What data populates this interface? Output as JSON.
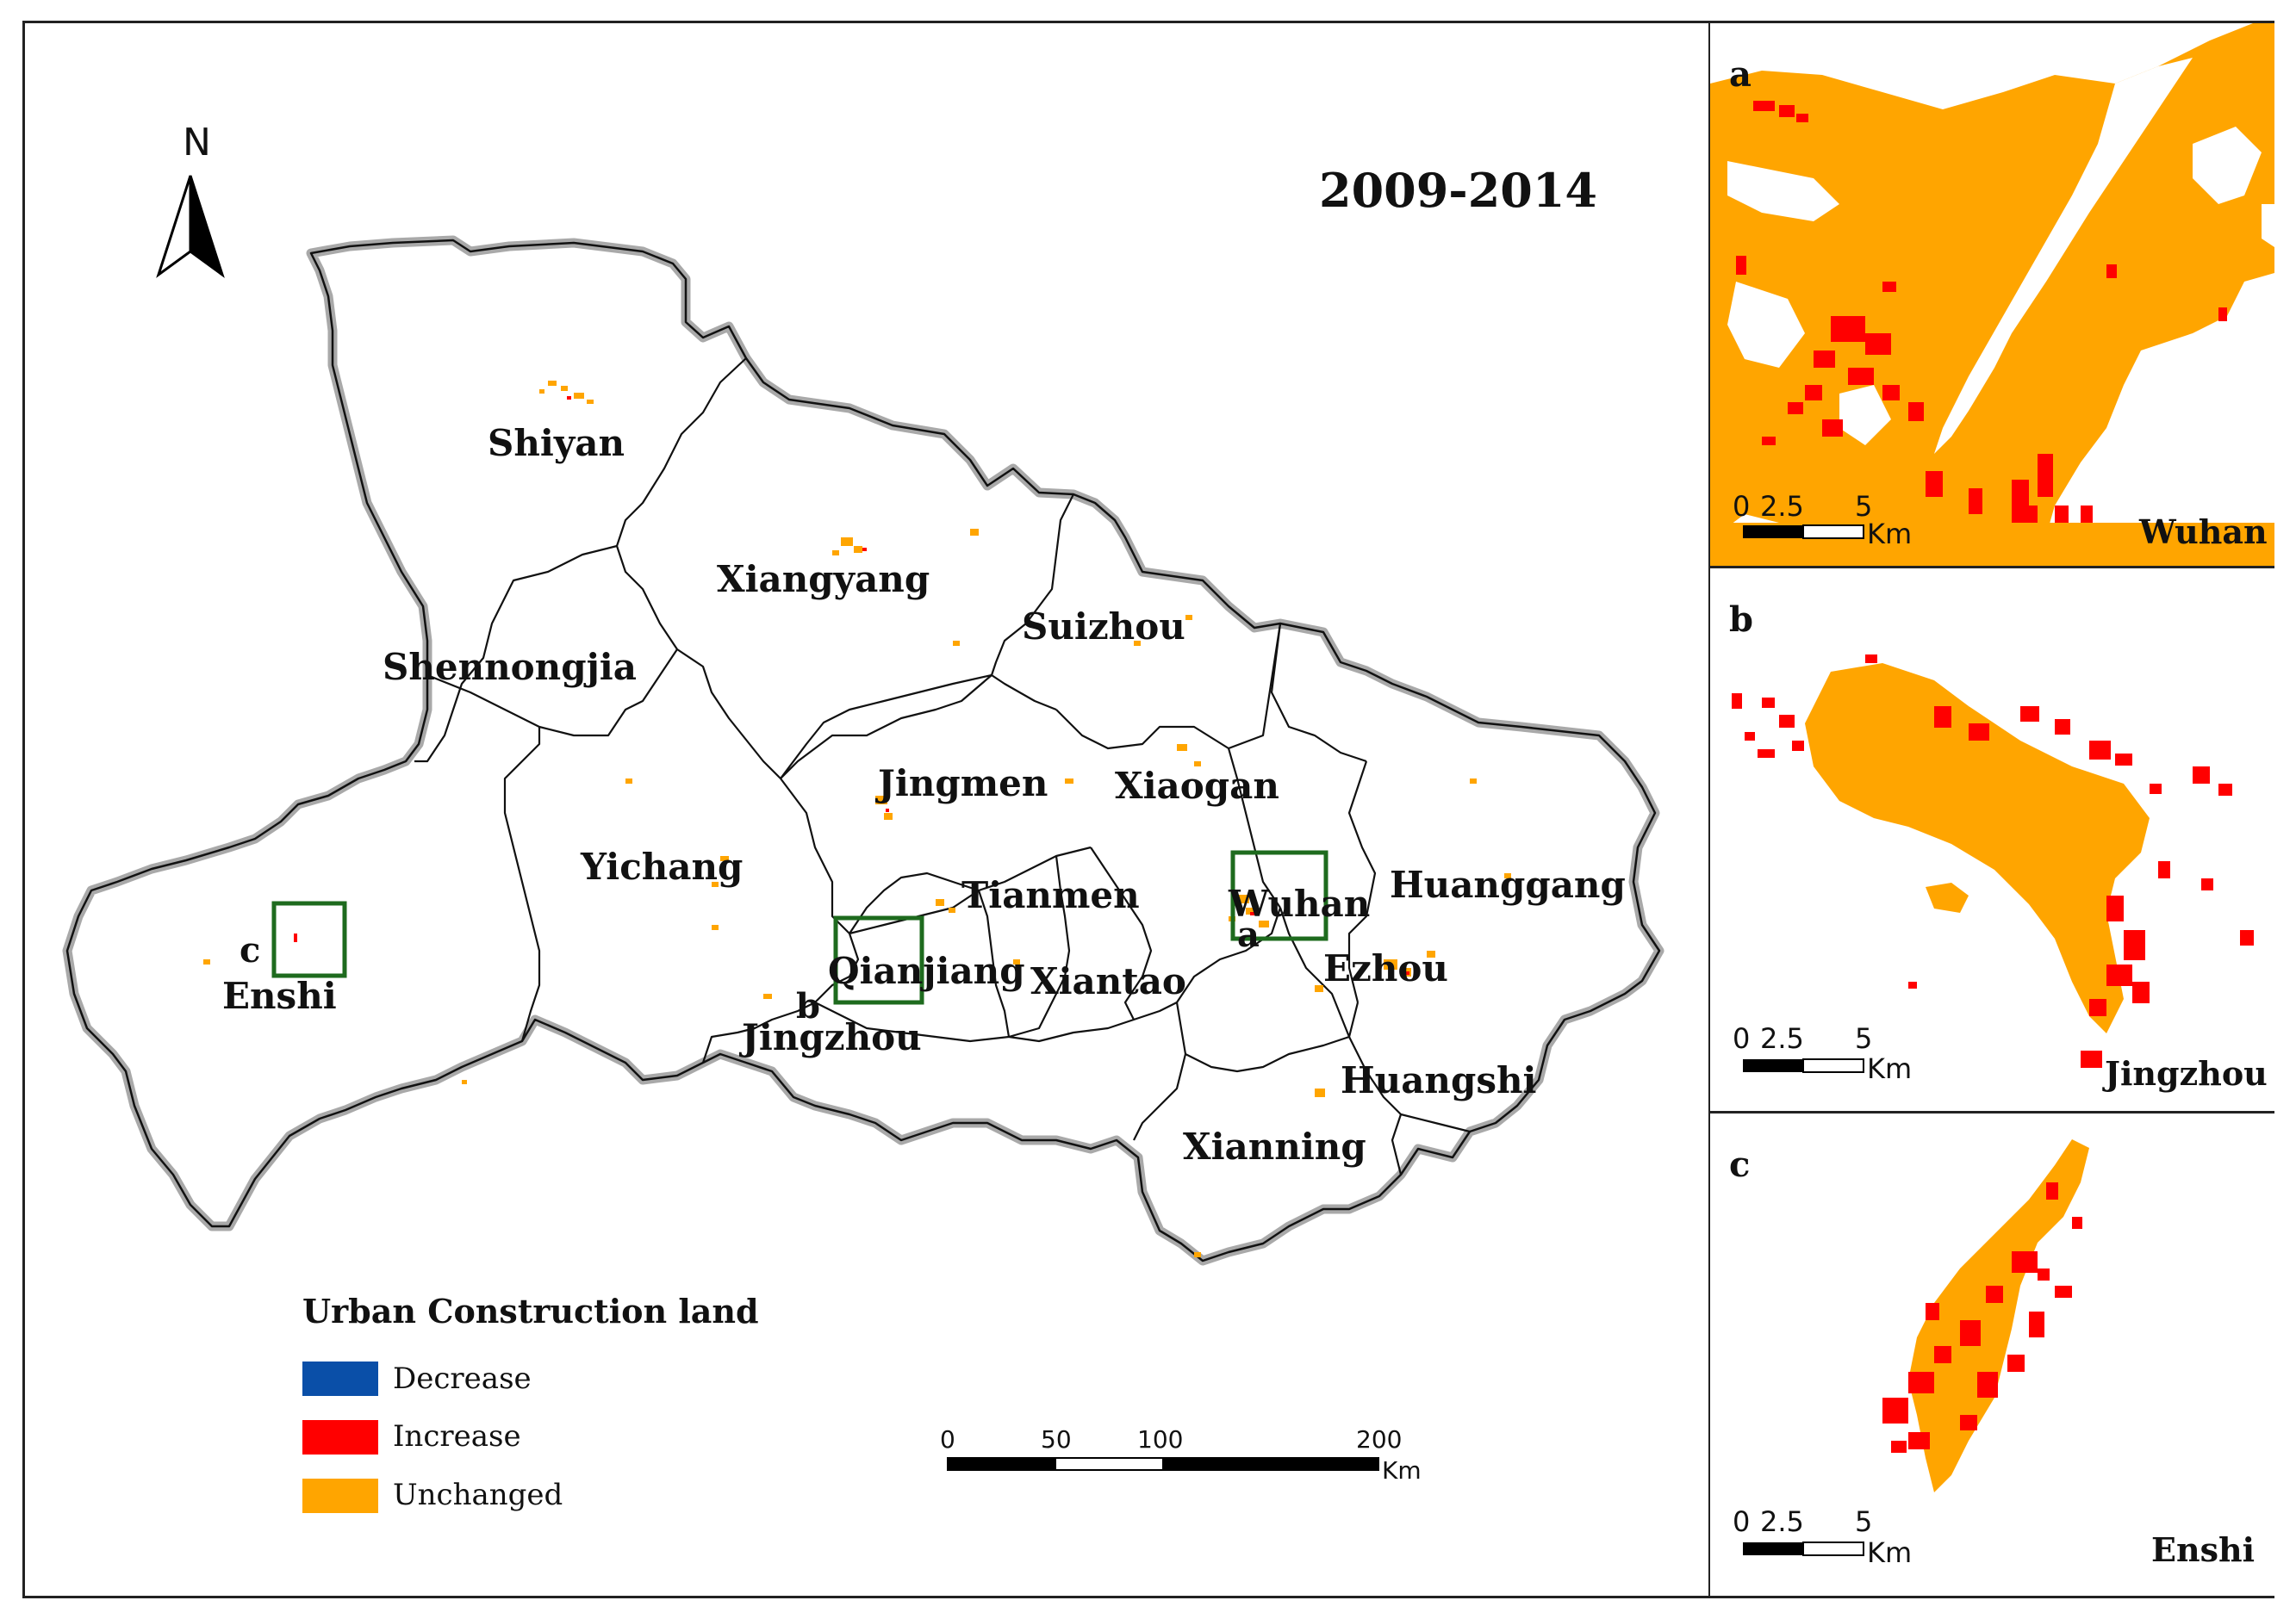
{
  "title": "2009-2014",
  "north_arrow": {
    "label": "N"
  },
  "regions": [
    {
      "name": "Shiyan"
    },
    {
      "name": "Xiangyang"
    },
    {
      "name": "Suizhou"
    },
    {
      "name": "Shennongjia"
    },
    {
      "name": "Jingmen"
    },
    {
      "name": "Xiaogan"
    },
    {
      "name": "Yichang"
    },
    {
      "name": "Tianmen"
    },
    {
      "name": "Wuhan"
    },
    {
      "name": "Huanggang"
    },
    {
      "name": "Enshi"
    },
    {
      "name": "Qianjiang"
    },
    {
      "name": "Xiantao"
    },
    {
      "name": "Ezhou"
    },
    {
      "name": "Jingzhou"
    },
    {
      "name": "Huangshi"
    },
    {
      "name": "Xianning"
    }
  ],
  "inset_markers": {
    "a": "a",
    "b": "b",
    "c": "c"
  },
  "legend": {
    "title": "Urban Construction land",
    "items": [
      {
        "label": "Decrease",
        "color": "#0a4fa8"
      },
      {
        "label": "Increase",
        "color": "#ff0000"
      },
      {
        "label": "Unchanged",
        "color": "#ffa500"
      }
    ]
  },
  "scale_bar": {
    "ticks": [
      "0",
      "50",
      "100",
      "200"
    ],
    "unit": "Km"
  },
  "insets": [
    {
      "letter": "a",
      "city": "Wuhan",
      "ticks": [
        "0",
        "2.5",
        "5"
      ],
      "unit": "Km"
    },
    {
      "letter": "b",
      "city": "Jingzhou",
      "ticks": [
        "0",
        "2.5",
        "5"
      ],
      "unit": "Km"
    },
    {
      "letter": "c",
      "city": "Enshi",
      "ticks": [
        "0",
        "2.5",
        "5"
      ],
      "unit": "Km"
    }
  ],
  "colors": {
    "unchanged": "#ffa500",
    "increase": "#ff0000",
    "decrease": "#0a4fa8",
    "inset_box": "#1e6b1e",
    "boundary": "#111111",
    "outer_boundary_halo": "#a9a9a9"
  }
}
